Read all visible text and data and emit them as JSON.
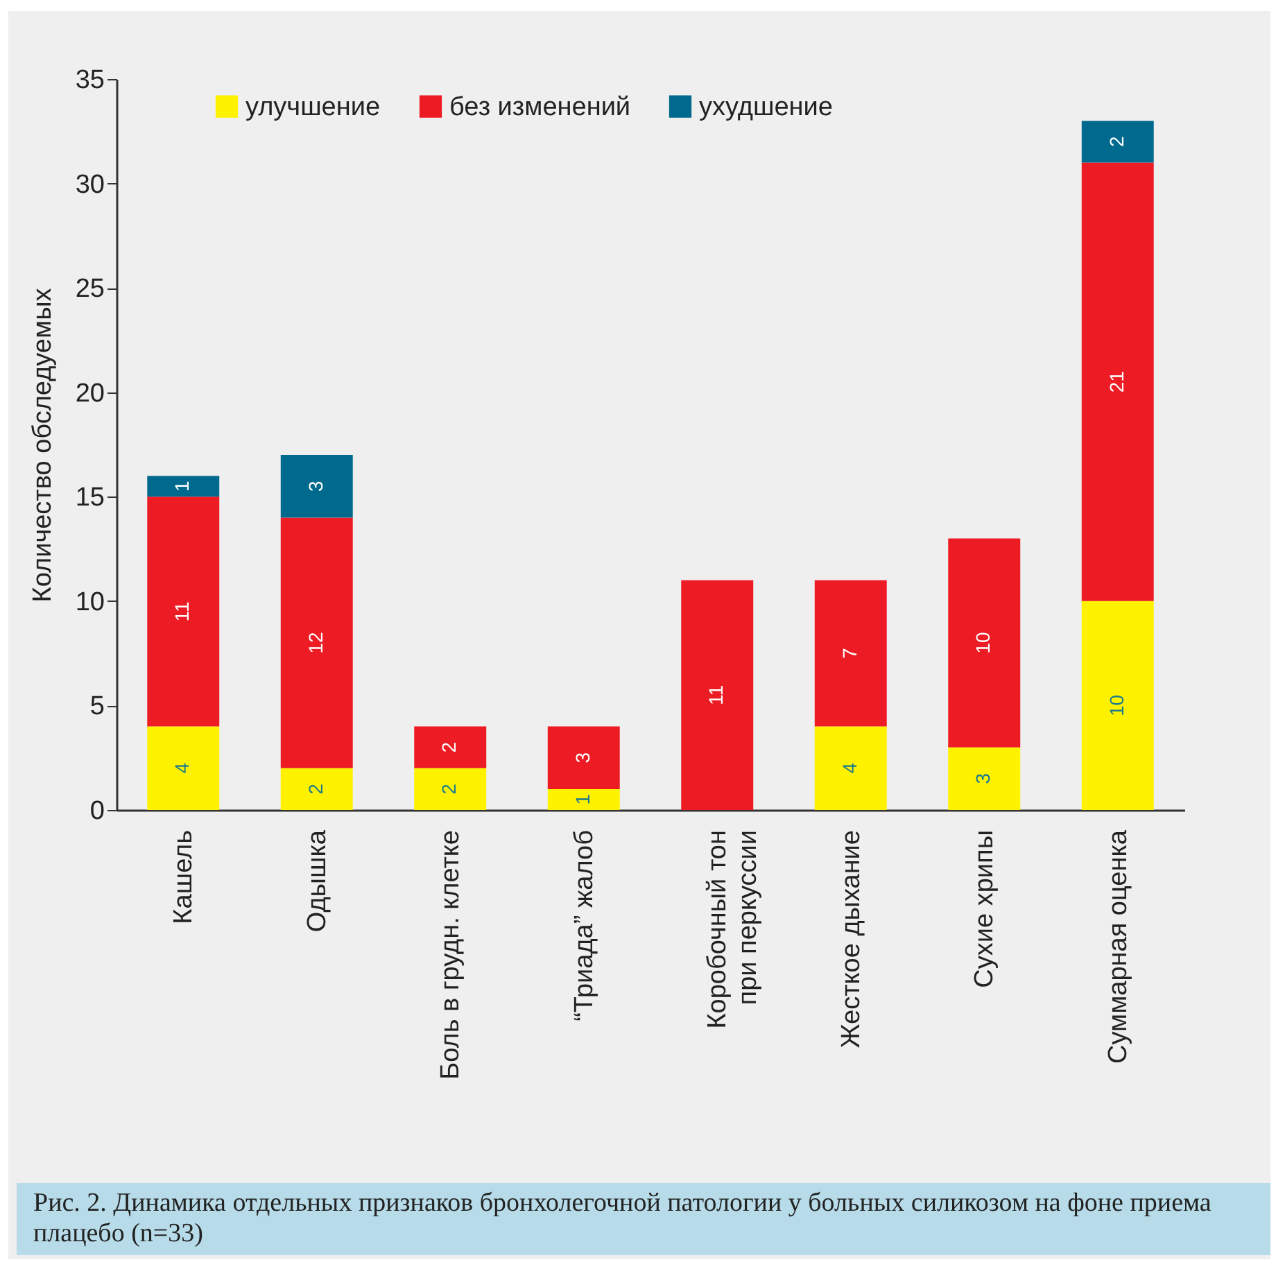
{
  "chart_data": {
    "type": "bar",
    "stacked": true,
    "ylabel": "Количество обследуемых",
    "categories": [
      "Кашель",
      "Одышка",
      "Боль в грудн. клетке",
      "“Триада” жалоб",
      "Коробочный тон\nпри перкуссии",
      "Жесткое дыхание",
      "Сухие хрипы",
      "Суммарная оценка"
    ],
    "series": [
      {
        "name": "улучшение",
        "color": "#fff200",
        "values": [
          4,
          2,
          2,
          1,
          null,
          4,
          3,
          10
        ]
      },
      {
        "name": "без изменений",
        "color": "#ed1c24",
        "values": [
          11,
          12,
          2,
          3,
          11,
          7,
          10,
          21
        ]
      },
      {
        "name": "ухудшение",
        "color": "#006a8e",
        "values": [
          1,
          3,
          null,
          null,
          null,
          null,
          null,
          2
        ]
      }
    ],
    "ylim": [
      0,
      35
    ],
    "yticks": [
      0,
      5,
      10,
      15,
      20,
      25,
      30,
      35
    ],
    "grid": false,
    "legend": "top",
    "data_labels": true,
    "annotations": [
      "Рис. 2. Динамика отдельных признаков бронхолегочной патологии у больных силикозом на фоне приема плацебо (n=33)"
    ]
  }
}
